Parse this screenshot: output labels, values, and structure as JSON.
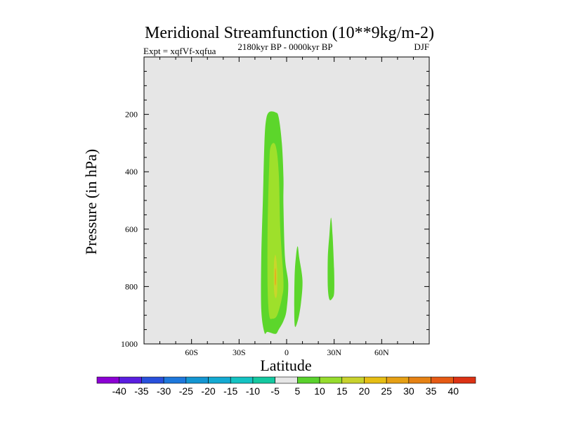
{
  "chart_data": {
    "type": "contour",
    "title": "Meridional Streamfunction (10**9kg/m-2)",
    "subtitle": "2180kyr BP - 0000kyr BP",
    "left_label": "Expt = xqfVf-xqfua",
    "right_label": "DJF",
    "xlabel": "Latitude",
    "ylabel": "Pressure (in hPa)",
    "xlim": [
      -90,
      90
    ],
    "ylim": [
      1000,
      0
    ],
    "x_ticks": [
      {
        "value": -60,
        "label": "60S"
      },
      {
        "value": -30,
        "label": "30S"
      },
      {
        "value": 0,
        "label": "0"
      },
      {
        "value": 30,
        "label": "30N"
      },
      {
        "value": 60,
        "label": "60N"
      }
    ],
    "y_ticks": [
      {
        "value": 200,
        "label": "200"
      },
      {
        "value": 400,
        "label": "400"
      },
      {
        "value": 600,
        "label": "600"
      },
      {
        "value": 800,
        "label": "800"
      },
      {
        "value": 1000,
        "label": "1000"
      }
    ],
    "background_color": "#e6e6e6",
    "regions": [
      {
        "name": "cell-5to10-main",
        "level": "5 to 10",
        "color": "#5cd62b",
        "points": [
          [
            -14,
            960
          ],
          [
            -16,
            880
          ],
          [
            -16,
            700
          ],
          [
            -15,
            500
          ],
          [
            -14,
            300
          ],
          [
            -13,
            220
          ],
          [
            -11,
            192
          ],
          [
            -7,
            193
          ],
          [
            -5,
            210
          ],
          [
            -3,
            300
          ],
          [
            -2,
            420
          ],
          [
            -2,
            520
          ],
          [
            -1,
            700
          ],
          [
            1,
            790
          ],
          [
            0,
            880
          ],
          [
            -2,
            920
          ],
          [
            -5,
            950
          ],
          [
            -7,
            965
          ],
          [
            -12,
            958
          ]
        ]
      },
      {
        "name": "cell-10to15-core",
        "level": "10 to 15",
        "color": "#9ee02b",
        "points": [
          [
            -11,
            900
          ],
          [
            -12,
            800
          ],
          [
            -12,
            600
          ],
          [
            -11,
            380
          ],
          [
            -10,
            312
          ],
          [
            -7,
            308
          ],
          [
            -5,
            400
          ],
          [
            -4,
            600
          ],
          [
            -2,
            780
          ],
          [
            -3,
            840
          ],
          [
            -6,
            900
          ],
          [
            -9,
            912
          ]
        ]
      },
      {
        "name": "cell-15to20",
        "level": "15 to 20",
        "color": "#c9d62b",
        "points": [
          [
            -8,
            810
          ],
          [
            -8,
            720
          ],
          [
            -7,
            690
          ],
          [
            -6,
            740
          ],
          [
            -6,
            820
          ],
          [
            -7,
            840
          ]
        ]
      },
      {
        "name": "cell-20to25-peak",
        "level": "20 to 25",
        "color": "#e8a81c",
        "points": [
          [
            -7.4,
            790
          ],
          [
            -7.3,
            740
          ],
          [
            -6.8,
            745
          ],
          [
            -6.8,
            790
          ]
        ]
      },
      {
        "name": "cell-5to10-eq",
        "level": "5 to 10",
        "color": "#5cd62b",
        "points": [
          [
            5,
            930
          ],
          [
            5,
            770
          ],
          [
            6,
            690
          ],
          [
            7,
            660
          ],
          [
            8,
            700
          ],
          [
            10,
            780
          ],
          [
            9,
            860
          ],
          [
            7,
            920
          ]
        ]
      },
      {
        "name": "cell-5to10-ne",
        "level": "5 to 10",
        "color": "#5cd62b",
        "points": [
          [
            26,
            800
          ],
          [
            26,
            700
          ],
          [
            27,
            620
          ],
          [
            28,
            560
          ],
          [
            29,
            620
          ],
          [
            30,
            750
          ],
          [
            30,
            820
          ],
          [
            29,
            840
          ],
          [
            27,
            845
          ]
        ]
      }
    ],
    "colorbar": {
      "ticks": [
        "-40",
        "-35",
        "-30",
        "-25",
        "-20",
        "-15",
        "-10",
        "-5",
        "5",
        "10",
        "15",
        "20",
        "25",
        "30",
        "35",
        "40"
      ],
      "colors": [
        "#8c00d4",
        "#5a1ee0",
        "#2850dc",
        "#1e78dc",
        "#1496d2",
        "#14aad2",
        "#14c3c3",
        "#14c8a0",
        "#e6e6e6",
        "#5ad22d",
        "#96dc2d",
        "#c8d22d",
        "#e6be14",
        "#e6a014",
        "#e68214",
        "#e65a14",
        "#dc3214"
      ]
    }
  }
}
